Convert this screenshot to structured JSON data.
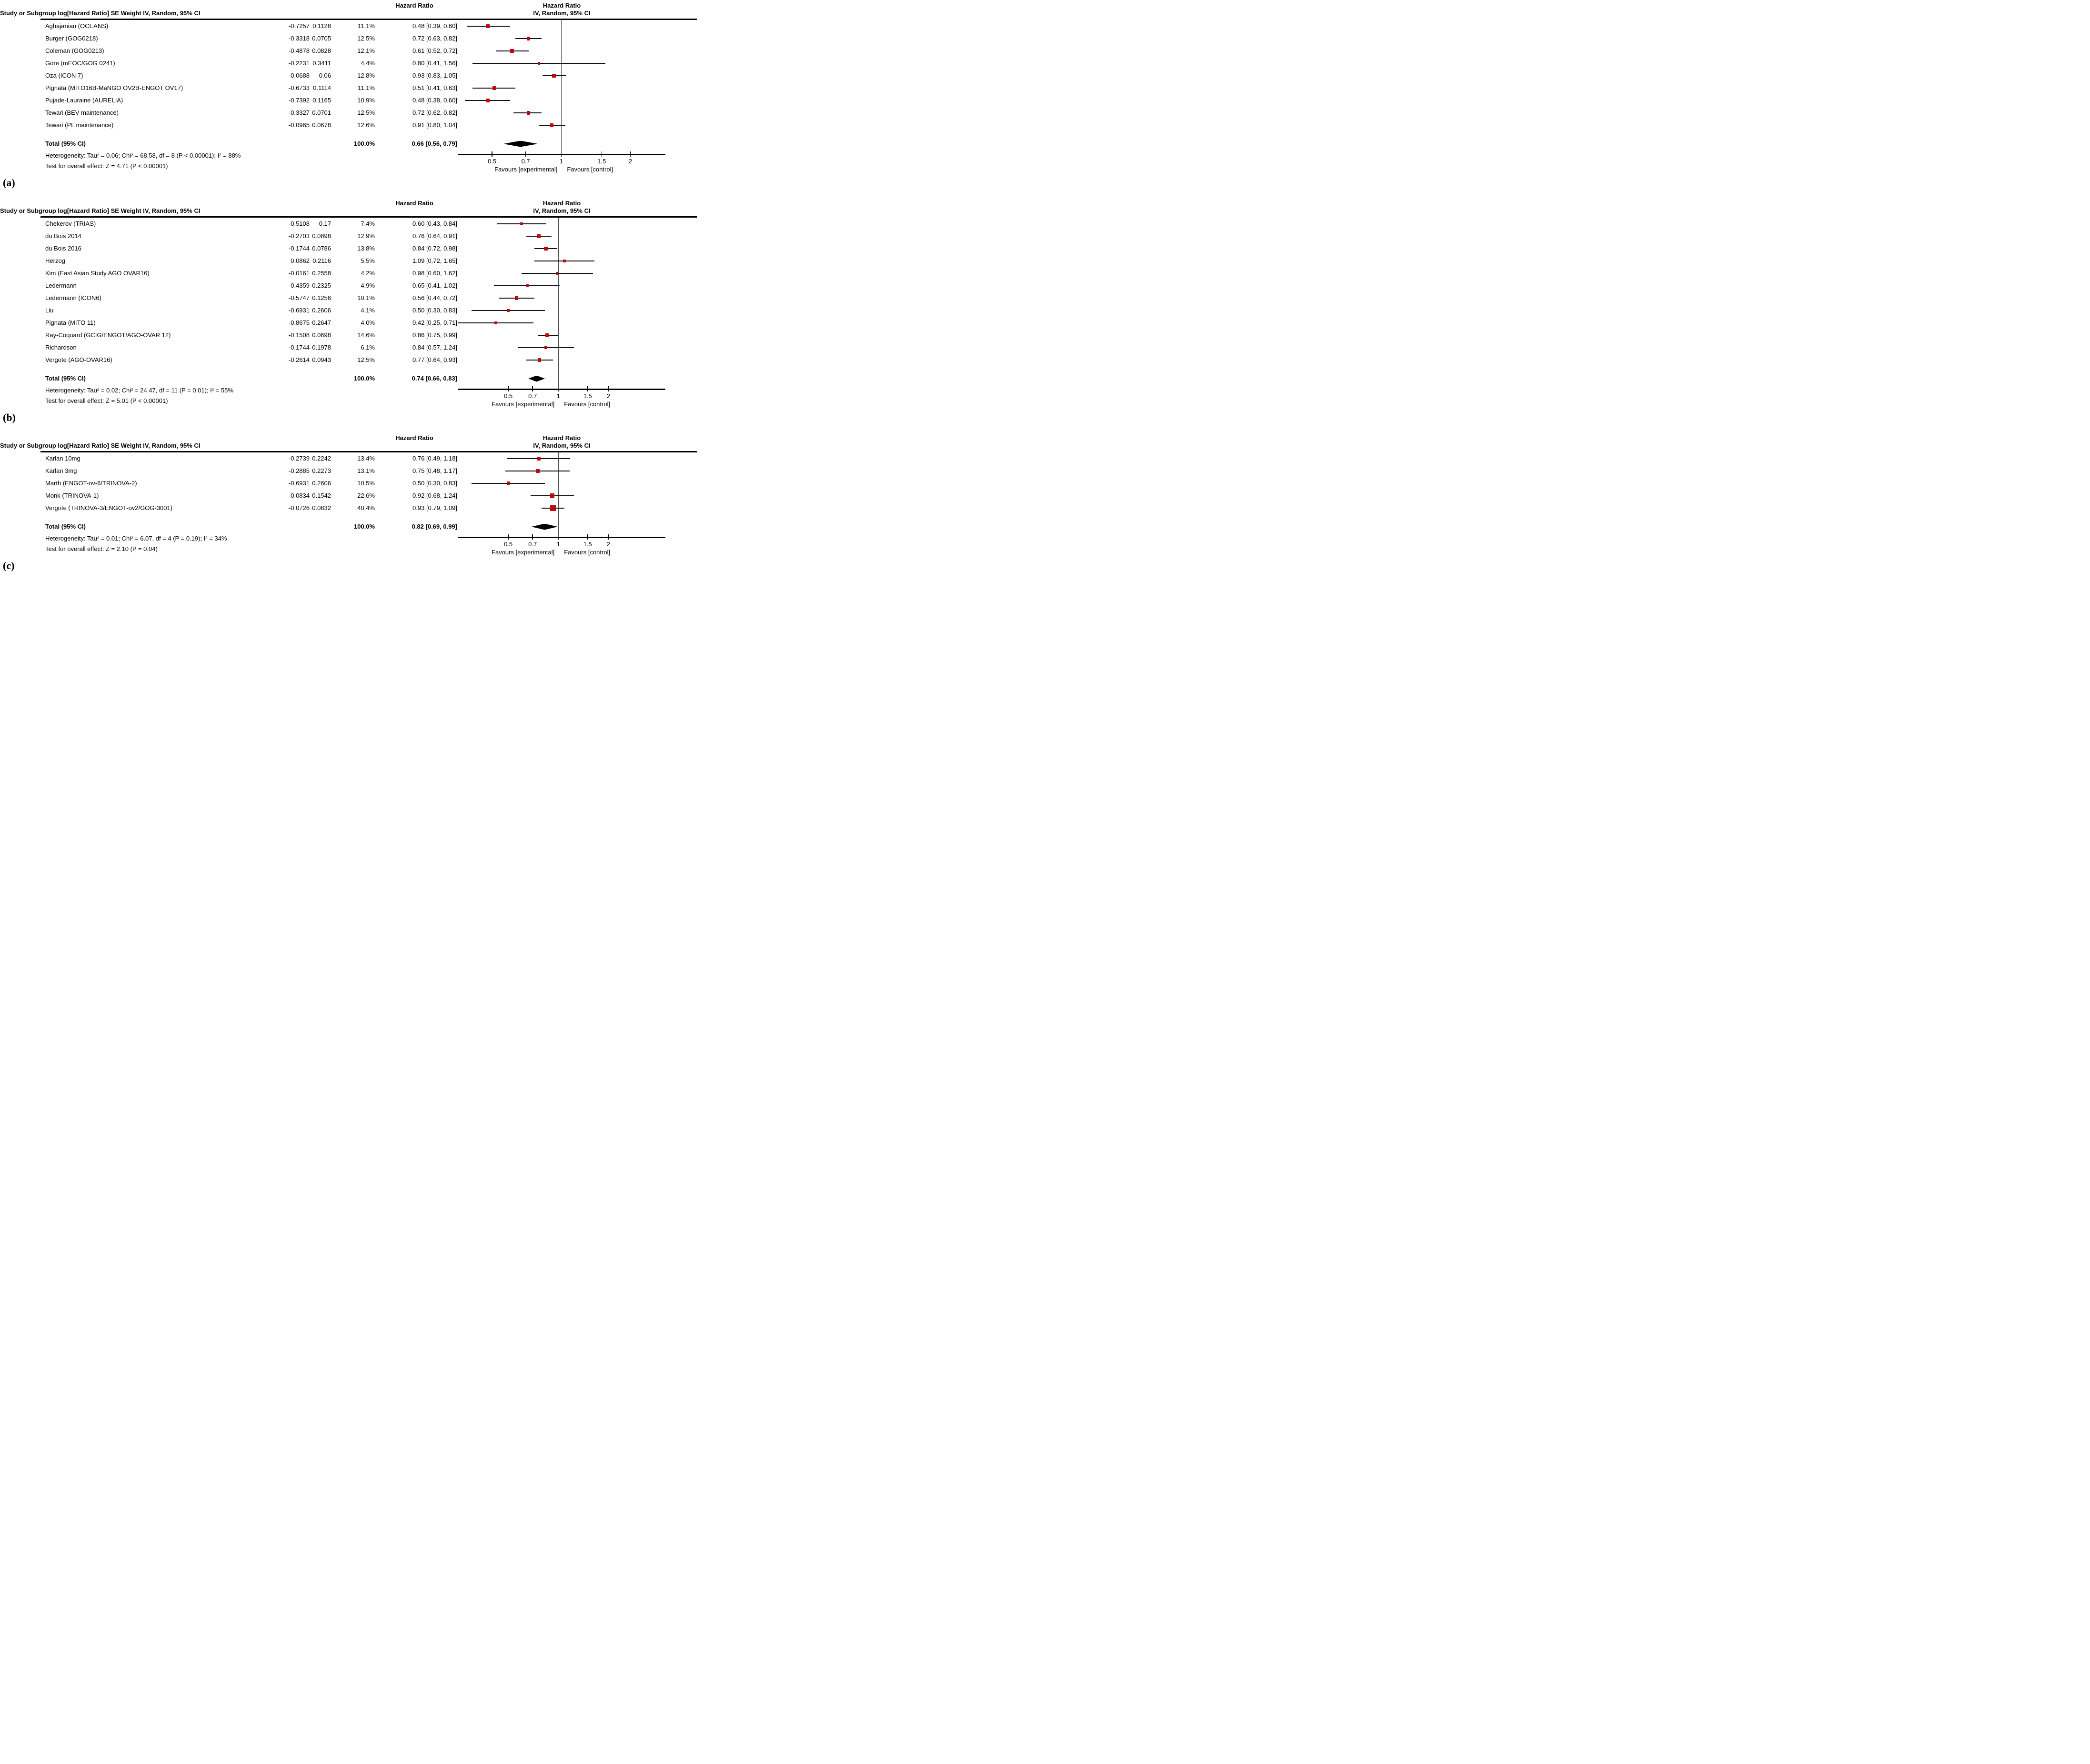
{
  "figure_background": "#ffffff",
  "marker_color": "#bb0a10",
  "line_color": "#111111",
  "diamond_color": "#000000",
  "chart_data": [
    {
      "type": "forest",
      "panel_label": "(a)",
      "effect_header": "Hazard Ratio",
      "plot_header_line1": "Hazard Ratio",
      "plot_header_line2": "IV, Random, 95% CI",
      "columns": {
        "study": "Study or Subgroup",
        "loghr": "log[Hazard Ratio]",
        "se": "SE",
        "weight": "Weight",
        "ci": "IV, Random, 95% CI"
      },
      "studies": [
        {
          "name": "Aghajanian (OCEANS)",
          "loghr": "-0.7257",
          "se": "0.1128",
          "weight": "11.1%",
          "ci": "0.48 [0.39, 0.60]",
          "hr": 0.48,
          "lo": 0.39,
          "hi": 0.6,
          "w": 11.1
        },
        {
          "name": "Burger (GOG0218)",
          "loghr": "-0.3318",
          "se": "0.0705",
          "weight": "12.5%",
          "ci": "0.72 [0.63, 0.82]",
          "hr": 0.72,
          "lo": 0.63,
          "hi": 0.82,
          "w": 12.5
        },
        {
          "name": "Coleman (GOG0213)",
          "loghr": "-0.4878",
          "se": "0.0828",
          "weight": "12.1%",
          "ci": "0.61 [0.52, 0.72]",
          "hr": 0.61,
          "lo": 0.52,
          "hi": 0.72,
          "w": 12.1
        },
        {
          "name": "Gore (mEOC/GOG 0241)",
          "loghr": "-0.2231",
          "se": "0.3411",
          "weight": "4.4%",
          "ci": "0.80 [0.41, 1.56]",
          "hr": 0.8,
          "lo": 0.41,
          "hi": 1.56,
          "w": 4.4
        },
        {
          "name": "Oza (ICON 7)",
          "loghr": "-0.0688",
          "se": "0.06",
          "weight": "12.8%",
          "ci": "0.93 [0.83, 1.05]",
          "hr": 0.93,
          "lo": 0.83,
          "hi": 1.05,
          "w": 12.8
        },
        {
          "name": "Pignata (MITO16B-MaNGO OV2B-ENGOT OV17)",
          "loghr": "-0.6733",
          "se": "0.1114",
          "weight": "11.1%",
          "ci": "0.51 [0.41, 0.63]",
          "hr": 0.51,
          "lo": 0.41,
          "hi": 0.63,
          "w": 11.1
        },
        {
          "name": "Pujade-Lauraine (AURELIA)",
          "loghr": "-0.7392",
          "se": "0.1165",
          "weight": "10.9%",
          "ci": "0.48 [0.38, 0.60]",
          "hr": 0.48,
          "lo": 0.38,
          "hi": 0.6,
          "w": 10.9
        },
        {
          "name": "Tewari (BEV maintenance)",
          "loghr": "-0.3327",
          "se": "0.0701",
          "weight": "12.5%",
          "ci": "0.72 [0.62, 0.82]",
          "hr": 0.72,
          "lo": 0.62,
          "hi": 0.82,
          "w": 12.5
        },
        {
          "name": "Tewari (PL maintenance)",
          "loghr": "-0.0965",
          "se": "0.0678",
          "weight": "12.6%",
          "ci": "0.91 [0.80, 1.04]",
          "hr": 0.91,
          "lo": 0.8,
          "hi": 1.04,
          "w": 12.6
        }
      ],
      "total": {
        "label": "Total (95% CI)",
        "weight": "100.0%",
        "ci": "0.66 [0.56, 0.79]",
        "hr": 0.66,
        "lo": 0.56,
        "hi": 0.79
      },
      "heterogeneity": "Heterogeneity: Tau² = 0.06; Chi² = 68.58, df = 8 (P < 0.00001); I² = 88%",
      "overall_test": "Test for overall effect: Z = 4.71 (P < 0.00001)",
      "axis": {
        "scale": "log",
        "ticks": [
          0.5,
          0.7,
          1,
          1.5,
          2
        ],
        "x_min": 0.356,
        "x_max": 2.84,
        "ref_line": 1
      },
      "favours_left": "Favours [experimental]",
      "favours_right": "Favours [control]"
    },
    {
      "type": "forest",
      "panel_label": "(b)",
      "effect_header": "Hazard Ratio",
      "plot_header_line1": "Hazard Ratio",
      "plot_header_line2": "IV, Random, 95% CI",
      "columns": {
        "study": "Study or Subgroup",
        "loghr": "log[Hazard Ratio]",
        "se": "SE",
        "weight": "Weight",
        "ci": "IV, Random, 95% CI"
      },
      "studies": [
        {
          "name": "Chekerov (TRIAS)",
          "loghr": "-0.5108",
          "se": "0.17",
          "weight": "7.4%",
          "ci": "0.60 [0.43, 0.84]",
          "hr": 0.6,
          "lo": 0.43,
          "hi": 0.84,
          "w": 7.4
        },
        {
          "name": "du Bois 2014",
          "loghr": "-0.2703",
          "se": "0.0898",
          "weight": "12.9%",
          "ci": "0.76 [0.64, 0.91]",
          "hr": 0.76,
          "lo": 0.64,
          "hi": 0.91,
          "w": 12.9
        },
        {
          "name": "du Bois 2016",
          "loghr": "-0.1744",
          "se": "0.0786",
          "weight": "13.8%",
          "ci": "0.84 [0.72, 0.98]",
          "hr": 0.84,
          "lo": 0.72,
          "hi": 0.98,
          "w": 13.8
        },
        {
          "name": "Herzog",
          "loghr": "0.0862",
          "se": "0.2116",
          "weight": "5.5%",
          "ci": "1.09 [0.72, 1.65]",
          "hr": 1.09,
          "lo": 0.72,
          "hi": 1.65,
          "w": 5.5
        },
        {
          "name": "Kim (East Asian Study AGO OVAR16)",
          "loghr": "-0.0161",
          "se": "0.2558",
          "weight": "4.2%",
          "ci": "0.98 [0.60, 1.62]",
          "hr": 0.98,
          "lo": 0.6,
          "hi": 1.62,
          "w": 4.2
        },
        {
          "name": "Ledermann",
          "loghr": "-0.4359",
          "se": "0.2325",
          "weight": "4.9%",
          "ci": "0.65 [0.41, 1.02]",
          "hr": 0.65,
          "lo": 0.41,
          "hi": 1.02,
          "w": 4.9
        },
        {
          "name": "Ledermann (ICON6)",
          "loghr": "-0.5747",
          "se": "0.1256",
          "weight": "10.1%",
          "ci": "0.56 [0.44, 0.72]",
          "hr": 0.56,
          "lo": 0.44,
          "hi": 0.72,
          "w": 10.1
        },
        {
          "name": "Liu",
          "loghr": "-0.6931",
          "se": "0.2606",
          "weight": "4.1%",
          "ci": "0.50 [0.30, 0.83]",
          "hr": 0.5,
          "lo": 0.3,
          "hi": 0.83,
          "w": 4.1
        },
        {
          "name": "Pignata (MITO 11)",
          "loghr": "-0.8675",
          "se": "0.2647",
          "weight": "4.0%",
          "ci": "0.42 [0.25, 0.71]",
          "hr": 0.42,
          "lo": 0.25,
          "hi": 0.71,
          "w": 4.0
        },
        {
          "name": "Ray-Coquard (GCIG/ENGOT/AGO-OVAR 12)",
          "loghr": "-0.1508",
          "se": "0.0698",
          "weight": "14.6%",
          "ci": "0.86 [0.75, 0.99]",
          "hr": 0.86,
          "lo": 0.75,
          "hi": 0.99,
          "w": 14.6
        },
        {
          "name": "Richardson",
          "loghr": "-0.1744",
          "se": "0.1978",
          "weight": "6.1%",
          "ci": "0.84 [0.57, 1.24]",
          "hr": 0.84,
          "lo": 0.57,
          "hi": 1.24,
          "w": 6.1
        },
        {
          "name": "Vergote (AGO-OVAR16)",
          "loghr": "-0.2614",
          "se": "0.0943",
          "weight": "12.5%",
          "ci": "0.77 [0.64, 0.93]",
          "hr": 0.77,
          "lo": 0.64,
          "hi": 0.93,
          "w": 12.5
        }
      ],
      "total": {
        "label": "Total (95% CI)",
        "weight": "100.0%",
        "ci": "0.74 [0.66, 0.83]",
        "hr": 0.74,
        "lo": 0.66,
        "hi": 0.83
      },
      "heterogeneity": "Heterogeneity: Tau² = 0.02; Chi² = 24.47, df = 11 (P = 0.01); I² = 55%",
      "overall_test": "Test for overall effect: Z = 5.01 (P < 0.00001)",
      "axis": {
        "scale": "log",
        "ticks": [
          0.5,
          0.7,
          1,
          1.5,
          2
        ],
        "x_min": 0.25,
        "x_max": 4.4,
        "ref_line": 1
      },
      "favours_left": "Favours [experimental]",
      "favours_right": "Favours [control]"
    },
    {
      "type": "forest",
      "panel_label": "(c)",
      "effect_header": "Hazard Ratio",
      "plot_header_line1": "Hazard Ratio",
      "plot_header_line2": "IV, Random, 95% CI",
      "columns": {
        "study": "Study or Subgroup",
        "loghr": "log[Hazard Ratio]",
        "se": "SE",
        "weight": "Weight",
        "ci": "IV, Random, 95% CI"
      },
      "studies": [
        {
          "name": "Karlan 10mg",
          "loghr": "-0.2739",
          "se": "0.2242",
          "weight": "13.4%",
          "ci": "0.76 [0.49, 1.18]",
          "hr": 0.76,
          "lo": 0.49,
          "hi": 1.18,
          "w": 13.4
        },
        {
          "name": "Karlan 3mg",
          "loghr": "-0.2885",
          "se": "0.2273",
          "weight": "13.1%",
          "ci": "0.75 [0.48, 1.17]",
          "hr": 0.75,
          "lo": 0.48,
          "hi": 1.17,
          "w": 13.1
        },
        {
          "name": "Marth (ENGOT-ov-6/TRINOVA-2)",
          "loghr": "-0.6931",
          "se": "0.2606",
          "weight": "10.5%",
          "ci": "0.50 [0.30, 0.83]",
          "hr": 0.5,
          "lo": 0.3,
          "hi": 0.83,
          "w": 10.5
        },
        {
          "name": "Monk (TRINOVA-1)",
          "loghr": "-0.0834",
          "se": "0.1542",
          "weight": "22.6%",
          "ci": "0.92 [0.68, 1.24]",
          "hr": 0.92,
          "lo": 0.68,
          "hi": 1.24,
          "w": 22.6
        },
        {
          "name": "Vergote (TRINOVA-3/ENGOT-ov2/GOG-3001)",
          "loghr": "-0.0726",
          "se": "0.0832",
          "weight": "40.4%",
          "ci": "0.93 [0.79, 1.09]",
          "hr": 0.93,
          "lo": 0.79,
          "hi": 1.09,
          "w": 40.4
        }
      ],
      "total": {
        "label": "Total (95% CI)",
        "weight": "100.0%",
        "ci": "0.82 [0.69, 0.99]",
        "hr": 0.82,
        "lo": 0.69,
        "hi": 0.99
      },
      "heterogeneity": "Heterogeneity: Tau² = 0.01; Chi² = 6.07, df = 4 (P = 0.19); I² = 34%",
      "overall_test": "Test for overall effect: Z = 2.10 (P = 0.04)",
      "axis": {
        "scale": "log",
        "ticks": [
          0.5,
          0.7,
          1,
          1.5,
          2
        ],
        "x_min": 0.25,
        "x_max": 4.4,
        "ref_line": 1
      },
      "favours_left": "Favours [experimental]",
      "favours_right": "Favours [control]"
    }
  ]
}
